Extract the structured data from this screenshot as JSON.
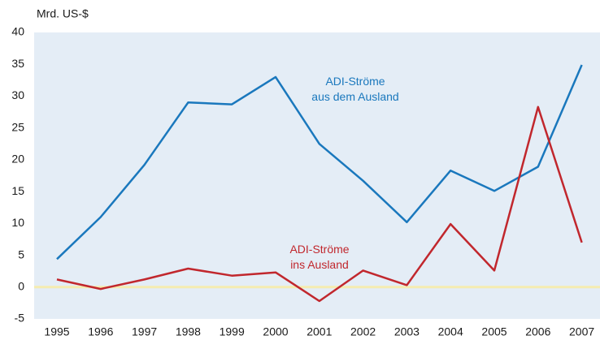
{
  "chart_data": {
    "type": "line",
    "y_label": "Mrd. US-$",
    "categories": [
      "1995",
      "1996",
      "1997",
      "1998",
      "1999",
      "2000",
      "2001",
      "2002",
      "2003",
      "2004",
      "2005",
      "2006",
      "2007"
    ],
    "series": [
      {
        "name": "ADI-Ströme\naus dem Ausland",
        "color": "#1a78bd",
        "values": [
          4.4,
          11,
          19.2,
          29,
          28.7,
          33,
          22.5,
          16.7,
          10.2,
          18.3,
          15.1,
          18.9,
          34.9
        ]
      },
      {
        "name": "ADI-Ströme\nins Ausland",
        "color": "#c1272d",
        "values": [
          1.2,
          -0.3,
          1.2,
          2.9,
          1.8,
          2.3,
          -2.2,
          2.6,
          0.3,
          9.9,
          2.6,
          28.3,
          7.0
        ]
      }
    ],
    "ylim": [
      -5,
      40
    ],
    "yticks": [
      -5,
      0,
      5,
      10,
      15,
      20,
      25,
      30,
      35,
      40
    ]
  }
}
